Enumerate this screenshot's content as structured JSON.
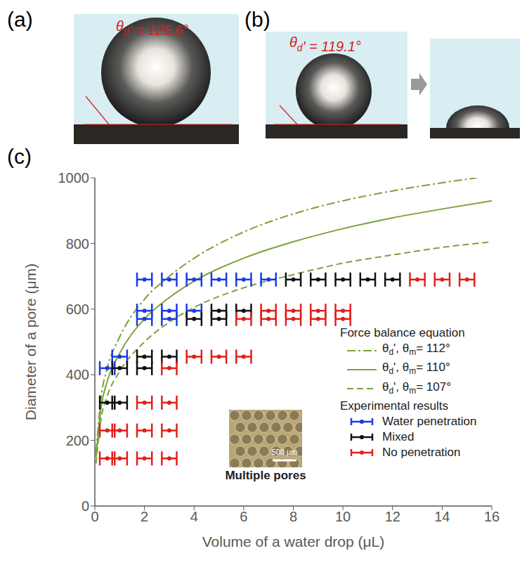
{
  "panels": [
    {
      "label": "(a)",
      "annotation": "θd' = 125.6°"
    },
    {
      "label": "(b)",
      "annotation": "θd' = 119.1°"
    }
  ],
  "chart_data": {
    "type": "scatter",
    "panel_label": "(c)",
    "x_label": "Volume of a water drop (μL)",
    "y_label": "Diameter of a pore (μm)",
    "xlim": [
      0,
      16
    ],
    "xticks": [
      0,
      2,
      4,
      6,
      8,
      10,
      12,
      14,
      16
    ],
    "ylim": [
      0,
      1000
    ],
    "yticks": [
      0,
      200,
      400,
      600,
      800,
      1000
    ],
    "grid": false,
    "legend": "lower right",
    "annotations": [
      "Multiple pores",
      "500 μm"
    ],
    "series": [
      {
        "name": "θd', θm= 112°",
        "group": "Force balance equation",
        "type": "line",
        "line_style": "dashdot",
        "color": "#7aa33a",
        "x": [
          0.05,
          0.25,
          0.5,
          1,
          2,
          3,
          4,
          6,
          8,
          10,
          12,
          14,
          15.4
        ],
        "values": [
          165,
          330,
          420,
          515,
          630,
          700,
          755,
          835,
          890,
          930,
          960,
          985,
          1000
        ]
      },
      {
        "name": "θd', θm= 110°",
        "group": "Force balance equation",
        "type": "line",
        "line_style": "solid",
        "color": "#7aa33a",
        "x": [
          0.05,
          0.25,
          0.5,
          1,
          2,
          3,
          4,
          6,
          8,
          10,
          12,
          14,
          16
        ],
        "values": [
          150,
          300,
          380,
          465,
          570,
          635,
          685,
          755,
          805,
          845,
          878,
          905,
          930
        ]
      },
      {
        "name": "θd', θm= 107°",
        "group": "Force balance equation",
        "type": "line",
        "line_style": "dashed",
        "color": "#7aa33a",
        "x": [
          0.05,
          0.25,
          0.5,
          1,
          2,
          3,
          4,
          6,
          8,
          10,
          12,
          14,
          16
        ],
        "values": [
          130,
          265,
          335,
          410,
          500,
          560,
          605,
          665,
          705,
          740,
          765,
          788,
          805
        ]
      },
      {
        "name": "Water penetration",
        "group": "Experimental results",
        "type": "scatter",
        "color": "#1a3be0",
        "x": [
          2,
          3,
          4,
          5,
          6,
          7,
          2,
          3,
          4,
          2,
          3,
          1,
          0.5
        ],
        "values": [
          690,
          690,
          690,
          690,
          690,
          690,
          595,
          595,
          595,
          570,
          570,
          455,
          420
        ],
        "x_error": [
          0.3,
          0.3,
          0.3,
          0.3,
          0.3,
          0.3,
          0.3,
          0.3,
          0.3,
          0.3,
          0.3,
          0.3,
          0.3
        ]
      },
      {
        "name": "Mixed",
        "group": "Experimental results",
        "type": "scatter",
        "color": "#111111",
        "x": [
          8,
          9,
          10,
          11,
          12,
          5,
          6,
          4,
          5,
          2,
          3,
          1,
          2,
          0.5,
          1
        ],
        "values": [
          690,
          690,
          690,
          690,
          690,
          595,
          595,
          570,
          570,
          455,
          455,
          420,
          420,
          315,
          315
        ],
        "x_error": [
          0.3,
          0.3,
          0.3,
          0.3,
          0.3,
          0.3,
          0.3,
          0.3,
          0.3,
          0.3,
          0.3,
          0.3,
          0.3,
          0.3,
          0.3
        ]
      },
      {
        "name": "No penetration",
        "group": "Experimental results",
        "type": "scatter",
        "color": "#e0201b",
        "x": [
          13,
          14,
          15,
          7,
          8,
          9,
          10,
          6,
          7,
          8,
          9,
          10,
          4,
          5,
          6,
          3,
          2,
          3,
          0.5,
          1,
          2,
          3,
          0.5,
          1,
          2,
          3
        ],
        "values": [
          690,
          690,
          690,
          595,
          595,
          595,
          595,
          570,
          570,
          570,
          570,
          570,
          455,
          455,
          455,
          420,
          315,
          315,
          230,
          230,
          230,
          230,
          145,
          145,
          145,
          145
        ],
        "x_error": [
          0.3,
          0.3,
          0.3,
          0.3,
          0.3,
          0.3,
          0.3,
          0.3,
          0.3,
          0.3,
          0.3,
          0.3,
          0.3,
          0.3,
          0.3,
          0.3,
          0.3,
          0.3,
          0.3,
          0.3,
          0.3,
          0.3,
          0.3,
          0.3,
          0.3,
          0.3
        ]
      }
    ]
  }
}
